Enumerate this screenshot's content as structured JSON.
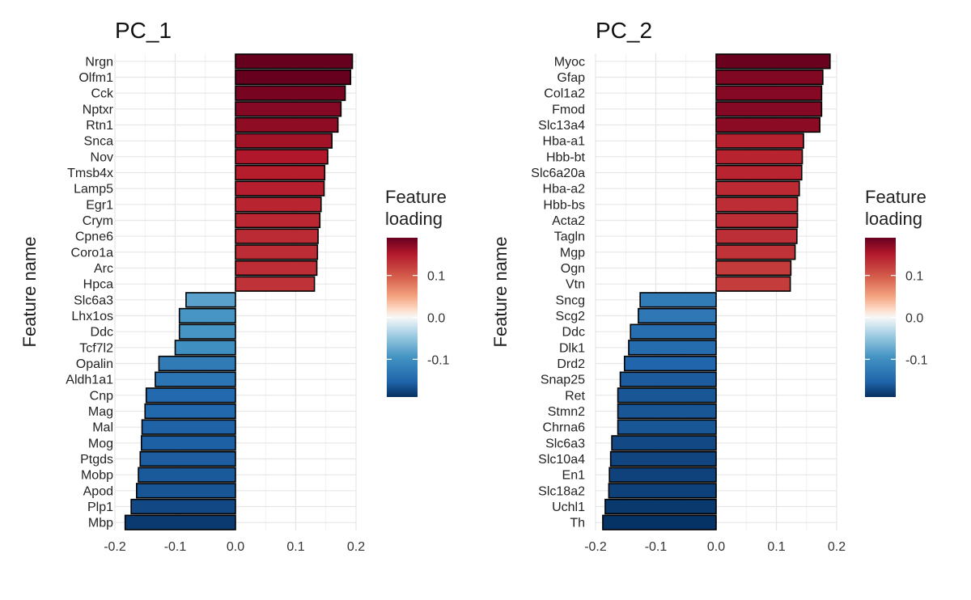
{
  "chart_data": [
    {
      "type": "bar",
      "orientation": "horizontal",
      "title": "PC_1",
      "ylabel": "Feature name",
      "xlabel": "",
      "xlim": [
        -0.2,
        0.2
      ],
      "xticks": [
        -0.2,
        -0.1,
        0.0,
        0.1,
        0.2
      ],
      "xtick_labels": [
        "-0.2",
        "-0.1",
        "0.0",
        "0.1",
        "0.2"
      ],
      "grid": true,
      "categories": [
        "Nrgn",
        "Olfm1",
        "Cck",
        "Nptxr",
        "Rtn1",
        "Snca",
        "Nov",
        "Tmsb4x",
        "Lamp5",
        "Egr1",
        "Crym",
        "Cpne6",
        "Coro1a",
        "Arc",
        "Hpca",
        "Slc6a3",
        "Lhx1os",
        "Ddc",
        "Tcf7l2",
        "Opalin",
        "Aldh1a1",
        "Cnp",
        "Mag",
        "Mal",
        "Mog",
        "Ptgds",
        "Mobp",
        "Apod",
        "Plp1",
        "Mbp"
      ],
      "values": [
        0.194,
        0.191,
        0.182,
        0.175,
        0.17,
        0.16,
        0.153,
        0.148,
        0.147,
        0.142,
        0.14,
        0.137,
        0.136,
        0.135,
        0.131,
        -0.082,
        -0.093,
        -0.093,
        -0.1,
        -0.127,
        -0.133,
        -0.148,
        -0.15,
        -0.155,
        -0.156,
        -0.158,
        -0.161,
        -0.164,
        -0.173,
        -0.183
      ],
      "legend": {
        "title": "Feature\nloading",
        "position": "right",
        "ticks": [
          0.1,
          0.0,
          -0.1
        ],
        "tick_labels": [
          "0.1",
          "0.0",
          "-0.1"
        ],
        "range": [
          -0.19,
          0.19
        ]
      }
    },
    {
      "type": "bar",
      "orientation": "horizontal",
      "title": "PC_2",
      "ylabel": "Feature name",
      "xlabel": "",
      "xlim": [
        -0.2,
        0.2
      ],
      "xticks": [
        -0.2,
        -0.1,
        0.0,
        0.1,
        0.2
      ],
      "xtick_labels": [
        "-0.2",
        "-0.1",
        "0.0",
        "0.1",
        "0.2"
      ],
      "grid": true,
      "categories": [
        "Myoc",
        "Gfap",
        "Col1a2",
        "Fmod",
        "Slc13a4",
        "Hba-a1",
        "Hbb-bt",
        "Slc6a20a",
        "Hba-a2",
        "Hbb-bs",
        "Acta2",
        "Tagln",
        "Mgp",
        "Ogn",
        "Vtn",
        "Sncg",
        "Scg2",
        "Ddc",
        "Dlk1",
        "Drd2",
        "Snap25",
        "Ret",
        "Stmn2",
        "Chrna6",
        "Slc6a3",
        "Slc10a4",
        "En1",
        "Slc18a2",
        "Uchl1",
        "Th"
      ],
      "values": [
        0.189,
        0.177,
        0.175,
        0.175,
        0.172,
        0.145,
        0.143,
        0.142,
        0.138,
        0.135,
        0.135,
        0.134,
        0.131,
        0.124,
        0.123,
        -0.126,
        -0.129,
        -0.142,
        -0.145,
        -0.152,
        -0.159,
        -0.163,
        -0.163,
        -0.163,
        -0.173,
        -0.175,
        -0.177,
        -0.178,
        -0.184,
        -0.188
      ],
      "legend": {
        "title": "Feature\nloading",
        "position": "right",
        "ticks": [
          0.1,
          0.0,
          -0.1
        ],
        "tick_labels": [
          "0.1",
          "0.0",
          "-0.1"
        ],
        "range": [
          -0.19,
          0.19
        ]
      }
    }
  ]
}
